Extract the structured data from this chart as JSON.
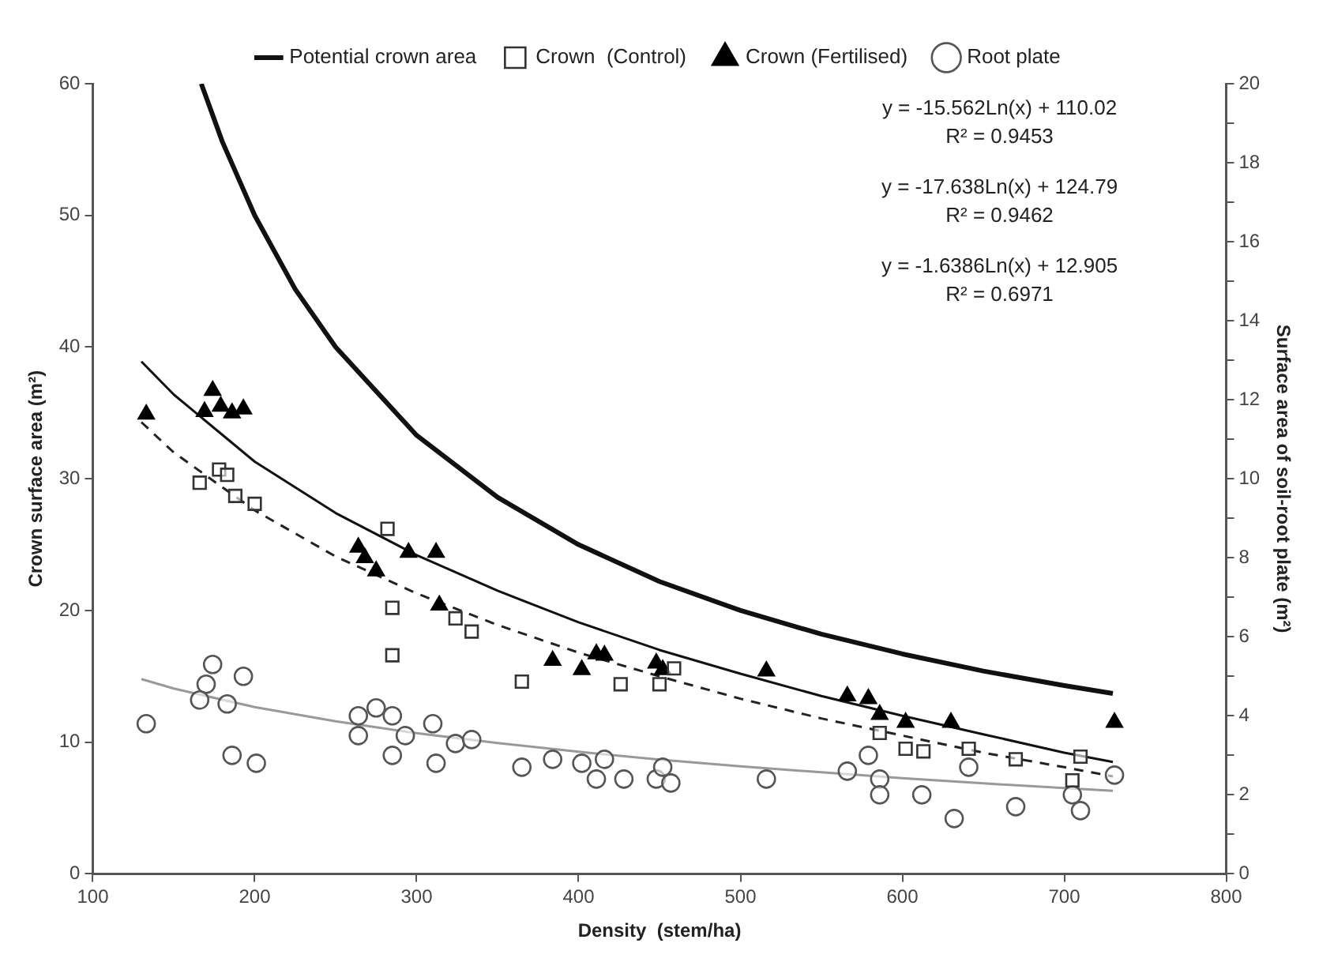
{
  "chart_data": {
    "type": "scatter",
    "xlabel": "Density  (stem/ha)",
    "ylabel": "Crown surface area (m²)",
    "y2label": "Surface area of soil-root plate (m²)",
    "xlim": [
      100,
      800
    ],
    "xticks": [
      100,
      200,
      300,
      400,
      500,
      600,
      700,
      800
    ],
    "ylim": [
      0,
      60
    ],
    "yticks": [
      0,
      10,
      20,
      30,
      40,
      50,
      60
    ],
    "y2lim": [
      0,
      20
    ],
    "y2ticks": [
      0,
      {
        "value": 1,
        "label": null
      },
      2,
      {
        "value": 3,
        "label": null
      },
      4,
      {
        "value": 5,
        "label": null
      },
      6,
      {
        "value": 7,
        "label": null
      },
      8,
      {
        "value": 9,
        "label": null
      },
      10,
      {
        "value": 11,
        "label": null
      },
      12,
      {
        "value": 13,
        "label": null
      },
      14,
      {
        "value": 15,
        "label": null
      },
      16,
      {
        "value": 17,
        "label": null
      },
      18,
      {
        "value": 19,
        "label": null
      },
      20
    ],
    "legend": "top",
    "annotations": [
      "y = -15.562Ln(x) + 110.02",
      "R² = 0.9453",
      "y = -17.638Ln(x) + 124.79",
      "R² = 0.9462",
      "y = -1.6386Ln(x) + 12.905",
      "R² = 0.6971"
    ],
    "series": [
      {
        "name": "Potential crown area",
        "type": "line",
        "color": "#111111",
        "marker": "none",
        "line_style": "solid",
        "x": [
          167,
          180,
          200,
          225,
          250,
          300,
          350,
          400,
          450,
          500,
          550,
          600,
          650,
          700,
          730
        ],
        "values": [
          60,
          55.6,
          50,
          44.4,
          40,
          33.3,
          28.6,
          25,
          22.2,
          20,
          18.2,
          16.7,
          15.4,
          14.3,
          13.7
        ]
      },
      {
        "name": "Crown  (Control)",
        "type": "scatter",
        "color": "#333333",
        "marker": "square",
        "x": [
          166,
          178,
          183,
          188,
          200,
          282,
          285,
          285,
          324,
          334,
          365,
          426,
          450,
          459,
          586,
          602,
          613,
          641,
          670,
          710,
          705
        ],
        "values": [
          29.7,
          30.7,
          30.3,
          28.7,
          28.1,
          26.2,
          20.2,
          16.6,
          19.4,
          18.4,
          14.6,
          14.4,
          14.4,
          15.6,
          10.7,
          9.5,
          9.3,
          9.5,
          8.7,
          8.9,
          7.1
        ]
      },
      {
        "name": "Crown (Fertilised)",
        "type": "scatter",
        "color": "#000000",
        "marker": "triangle",
        "x": [
          133,
          169,
          174,
          179,
          186,
          193,
          264,
          268,
          275,
          295,
          312,
          314,
          384,
          402,
          411,
          416,
          448,
          452,
          516,
          566,
          579,
          586,
          602,
          630,
          731
        ],
        "values": [
          34.9,
          35.1,
          36.7,
          35.5,
          35,
          35.3,
          24.8,
          24,
          23,
          24.4,
          24.4,
          20.4,
          16.2,
          15.5,
          16.7,
          16.6,
          16,
          15.5,
          15.4,
          13.5,
          13.3,
          12.1,
          11.5,
          11.5,
          11.5
        ]
      },
      {
        "name": "Root plate",
        "type": "scatter",
        "axis": "y2",
        "color": "#555555",
        "marker": "circle",
        "x": [
          133,
          174,
          170,
          193,
          166,
          183,
          186,
          201,
          264,
          275,
          285,
          264,
          293,
          285,
          310,
          312,
          324,
          334,
          365,
          384,
          402,
          416,
          411,
          428,
          448,
          457,
          452,
          516,
          566,
          579,
          586,
          586,
          612,
          632,
          641,
          670,
          705,
          710,
          731
        ],
        "values": [
          3.8,
          5.3,
          4.8,
          5.0,
          4.4,
          4.3,
          3.0,
          2.8,
          4.0,
          4.2,
          4.0,
          3.5,
          3.5,
          3.0,
          3.8,
          2.8,
          3.3,
          3.4,
          2.7,
          2.9,
          2.8,
          2.9,
          2.4,
          2.4,
          2.4,
          2.3,
          2.7,
          2.4,
          2.6,
          3.0,
          2.4,
          2.0,
          2.0,
          1.4,
          2.7,
          1.7,
          2.0,
          1.6,
          2.5
        ]
      },
      {
        "type": "line",
        "color": "#222222",
        "marker": "none",
        "line_style": "dashed",
        "x": [
          130,
          150,
          200,
          250,
          300,
          350,
          400,
          450,
          500,
          550,
          600,
          650,
          700,
          730
        ],
        "values": [
          34.3,
          32,
          27.6,
          24.1,
          21.3,
          18.9,
          16.8,
          15,
          13.3,
          11.8,
          10.5,
          9.2,
          8.1,
          7.4
        ]
      },
      {
        "type": "line",
        "color": "#111111",
        "marker": "none",
        "line_style": "solid",
        "x": [
          130,
          150,
          200,
          250,
          300,
          350,
          400,
          450,
          500,
          550,
          600,
          650,
          700,
          730
        ],
        "values": [
          38.9,
          36.4,
          31.3,
          27.4,
          24.2,
          21.5,
          19.1,
          17,
          15.2,
          13.5,
          12,
          10.6,
          9.2,
          8.5
        ]
      },
      {
        "type": "line",
        "axis": "y2",
        "color": "#999999",
        "marker": "none",
        "line_style": "solid",
        "x": [
          130,
          150,
          200,
          250,
          300,
          350,
          400,
          450,
          500,
          550,
          600,
          650,
          700,
          730
        ],
        "values": [
          4.93,
          4.69,
          4.22,
          3.86,
          3.56,
          3.31,
          3.09,
          2.89,
          2.72,
          2.57,
          2.42,
          2.29,
          2.17,
          2.1
        ]
      }
    ]
  }
}
